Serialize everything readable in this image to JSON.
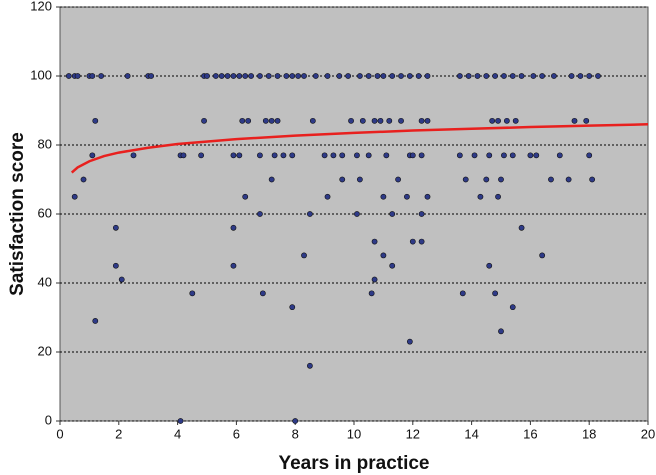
{
  "chart_data": {
    "type": "scatter",
    "x_label": "Years in practice",
    "y_label": "Satisfaction score",
    "xlim": [
      0,
      20
    ],
    "xticks": [
      0,
      2,
      4,
      6,
      8,
      10,
      12,
      14,
      16,
      18,
      20
    ],
    "ylim": [
      0,
      120
    ],
    "yticks": [
      0,
      20,
      40,
      60,
      80,
      100,
      120
    ],
    "grid": true,
    "series": [
      {
        "color": "#2e3a87",
        "mode": "markers",
        "x": [
          0.3,
          0.5,
          0.6,
          1.0,
          1.1,
          1.4,
          2.3,
          3.0,
          3.1,
          4.9,
          5.0,
          5.3,
          5.5,
          5.7,
          5.9,
          6.1,
          6.3,
          6.5,
          6.8,
          7.1,
          7.4,
          7.7,
          7.9,
          8.1,
          8.3,
          8.7,
          9.1,
          9.5,
          9.8,
          10.2,
          10.5,
          10.8,
          11.0,
          11.3,
          11.6,
          11.9,
          12.2,
          12.5,
          13.6,
          13.9,
          14.2,
          14.5,
          14.8,
          15.1,
          15.4,
          15.7,
          16.1,
          16.4,
          16.8,
          17.4,
          17.7,
          18.0,
          18.3,
          1.2,
          4.9,
          6.2,
          6.4,
          7.0,
          7.2,
          7.4,
          8.6,
          9.9,
          10.3,
          10.7,
          10.9,
          11.2,
          11.6,
          12.3,
          12.5,
          14.7,
          14.9,
          15.2,
          15.5,
          17.5,
          17.9,
          1.1,
          4.1,
          4.2,
          4.8,
          5.9,
          6.1,
          6.8,
          7.3,
          7.6,
          7.9,
          9.0,
          9.3,
          9.6,
          10.1,
          10.5,
          11.1,
          11.9,
          12.0,
          12.3,
          13.6,
          14.1,
          14.6,
          15.1,
          15.4,
          16.0,
          16.2,
          17.0,
          18.0,
          0.5,
          0.8,
          1.2,
          1.9,
          1.9,
          2.1,
          2.5,
          4.1,
          4.5,
          5.9,
          5.9,
          6.3,
          6.8,
          6.9,
          7.2,
          7.9,
          8.0,
          8.3,
          8.5,
          8.5,
          9.1,
          9.6,
          10.1,
          10.2,
          10.6,
          10.7,
          10.7,
          11.0,
          11.0,
          11.3,
          11.3,
          11.5,
          11.8,
          11.9,
          12.0,
          12.3,
          12.3,
          12.5,
          13.7,
          13.8,
          14.3,
          14.5,
          14.6,
          14.8,
          14.9,
          15.0,
          15.0,
          15.4,
          15.7,
          16.4,
          16.7,
          17.3,
          18.1
        ],
        "values": [
          100,
          100,
          100,
          100,
          100,
          100,
          100,
          100,
          100,
          100,
          100,
          100,
          100,
          100,
          100,
          100,
          100,
          100,
          100,
          100,
          100,
          100,
          100,
          100,
          100,
          100,
          100,
          100,
          100,
          100,
          100,
          100,
          100,
          100,
          100,
          100,
          100,
          100,
          100,
          100,
          100,
          100,
          100,
          100,
          100,
          100,
          100,
          100,
          100,
          100,
          100,
          100,
          100,
          87,
          87,
          87,
          87,
          87,
          87,
          87,
          87,
          87,
          87,
          87,
          87,
          87,
          87,
          87,
          87,
          87,
          87,
          87,
          87,
          87,
          87,
          77,
          77,
          77,
          77,
          77,
          77,
          77,
          77,
          77,
          77,
          77,
          77,
          77,
          77,
          77,
          77,
          77,
          77,
          77,
          77,
          77,
          77,
          77,
          77,
          77,
          77,
          77,
          77,
          65,
          70,
          29,
          56,
          45,
          41,
          77,
          0,
          37,
          56,
          45,
          65,
          60,
          37,
          70,
          33,
          0,
          48,
          16,
          60,
          65,
          70,
          60,
          70,
          37,
          41,
          52,
          48,
          65,
          45,
          60,
          70,
          65,
          23,
          52,
          52,
          60,
          65,
          37,
          70,
          65,
          70,
          45,
          37,
          65,
          70,
          26,
          33,
          56,
          48,
          70,
          70,
          70
        ]
      },
      {
        "color": "#e8201e",
        "mode": "line",
        "x": [
          0.4,
          0.6,
          1,
          1.5,
          2,
          3,
          4,
          6,
          8,
          10,
          12,
          14,
          16,
          18,
          20
        ],
        "values": [
          72.0,
          73.5,
          75.3,
          76.8,
          77.8,
          79.2,
          80.3,
          81.7,
          82.7,
          83.5,
          84.2,
          84.7,
          85.2,
          85.6,
          86.0
        ]
      }
    ]
  }
}
